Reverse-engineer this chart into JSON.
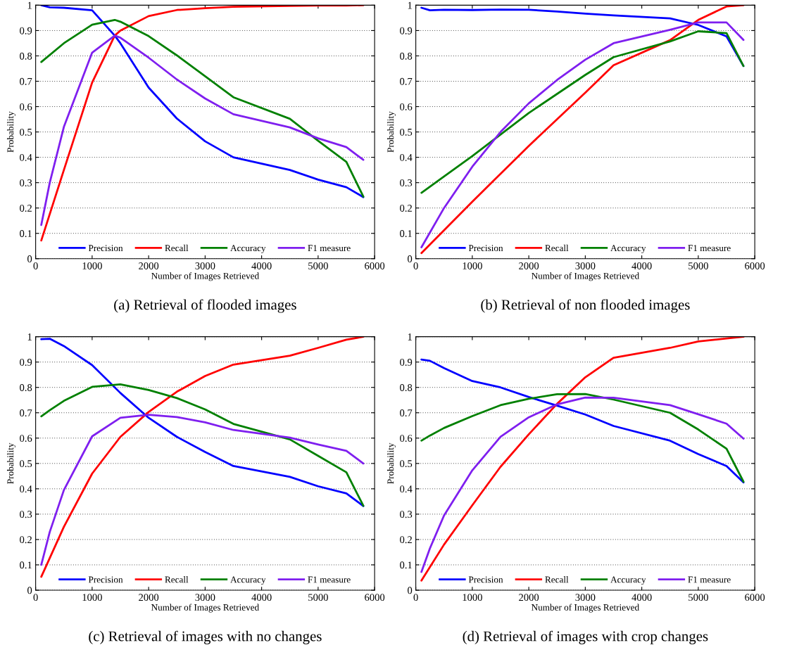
{
  "chart_data": [
    {
      "type": "line",
      "title": "(a) Retrieval of flooded images",
      "xlabel": "Number of Images Retrieved",
      "ylabel": "Probability",
      "xlim": [
        0,
        6000
      ],
      "ylim": [
        0,
        1
      ],
      "xticks": [
        0,
        1000,
        2000,
        3000,
        4000,
        5000,
        6000
      ],
      "yticks": [
        0,
        0.1,
        0.2,
        0.3,
        0.4,
        0.5,
        0.6,
        0.7,
        0.8,
        0.9,
        1
      ],
      "grid": "y",
      "legend": "bottom",
      "line_style": "solid",
      "series": [
        {
          "name": "Precision",
          "color": "#0000ff",
          "x": [
            100,
            250,
            500,
            1000,
            1400,
            1500,
            2000,
            2500,
            3000,
            3500,
            4500,
            5000,
            5500,
            5800
          ],
          "values": [
            1.0,
            0.992,
            0.99,
            0.98,
            0.88,
            0.85,
            0.675,
            0.553,
            0.463,
            0.4,
            0.35,
            0.312,
            0.282,
            0.243
          ]
        },
        {
          "name": "Recall",
          "color": "#ff0000",
          "x": [
            100,
            500,
            1000,
            1400,
            1500,
            2000,
            2500,
            3000,
            3500,
            4500,
            5000,
            5500,
            5800
          ],
          "values": [
            0.072,
            0.35,
            0.695,
            0.88,
            0.9,
            0.957,
            0.981,
            0.988,
            0.994,
            0.997,
            0.999,
            0.999,
            1.0
          ]
        },
        {
          "name": "Accuracy",
          "color": "#008000",
          "x": [
            100,
            500,
            1000,
            1400,
            1500,
            2000,
            2500,
            3000,
            3500,
            4500,
            5000,
            5500,
            5800
          ],
          "values": [
            0.776,
            0.85,
            0.923,
            0.942,
            0.935,
            0.878,
            0.802,
            0.72,
            0.637,
            0.552,
            0.465,
            0.382,
            0.245
          ]
        },
        {
          "name": "F1 measure",
          "color": "#7f1fef",
          "x": [
            100,
            250,
            500,
            1000,
            1400,
            1500,
            2000,
            2500,
            3000,
            3500,
            4500,
            5000,
            5500,
            5800
          ],
          "values": [
            0.133,
            0.3,
            0.52,
            0.813,
            0.88,
            0.872,
            0.793,
            0.707,
            0.632,
            0.57,
            0.518,
            0.475,
            0.44,
            0.39
          ]
        }
      ]
    },
    {
      "type": "line",
      "title": "(b) Retrieval of non flooded images",
      "xlabel": "Number of Images Retrieved",
      "ylabel": "Probability",
      "xlim": [
        0,
        6000
      ],
      "ylim": [
        0,
        1
      ],
      "xticks": [
        0,
        1000,
        2000,
        3000,
        4000,
        5000,
        6000
      ],
      "yticks": [
        0,
        0.1,
        0.2,
        0.3,
        0.4,
        0.5,
        0.6,
        0.7,
        0.8,
        0.9,
        1
      ],
      "grid": "y",
      "legend": "bottom",
      "line_style": "solid",
      "series": [
        {
          "name": "Precision",
          "color": "#0000ff",
          "x": [
            100,
            250,
            500,
            1000,
            1500,
            2000,
            2500,
            3000,
            3500,
            4500,
            5000,
            5500,
            5800
          ],
          "values": [
            0.99,
            0.98,
            0.982,
            0.981,
            0.983,
            0.982,
            0.975,
            0.967,
            0.96,
            0.948,
            0.922,
            0.877,
            0.76
          ]
        },
        {
          "name": "Recall",
          "color": "#ff0000",
          "x": [
            100,
            1000,
            2000,
            3000,
            3500,
            4500,
            5000,
            5500,
            5800
          ],
          "values": [
            0.022,
            0.225,
            0.445,
            0.655,
            0.763,
            0.862,
            0.942,
            0.995,
            1.0
          ]
        },
        {
          "name": "Accuracy",
          "color": "#008000",
          "x": [
            100,
            1000,
            2000,
            3000,
            3500,
            4500,
            5000,
            5500,
            5800
          ],
          "values": [
            0.26,
            0.405,
            0.575,
            0.725,
            0.795,
            0.857,
            0.897,
            0.89,
            0.76
          ]
        },
        {
          "name": "F1 measure",
          "color": "#7f1fef",
          "x": [
            100,
            500,
            1000,
            1500,
            2000,
            2500,
            3000,
            3500,
            4500,
            5000,
            5500,
            5800
          ],
          "values": [
            0.045,
            0.2,
            0.363,
            0.5,
            0.613,
            0.705,
            0.785,
            0.85,
            0.903,
            0.932,
            0.932,
            0.863
          ]
        }
      ]
    },
    {
      "type": "line",
      "title": "(c) Retrieval of images with no changes",
      "xlabel": "Number of Images Retrieved",
      "ylabel": "Probability",
      "xlim": [
        0,
        6000
      ],
      "ylim": [
        0,
        1
      ],
      "xticks": [
        0,
        1000,
        2000,
        3000,
        4000,
        5000,
        6000
      ],
      "yticks": [
        0,
        0.1,
        0.2,
        0.3,
        0.4,
        0.5,
        0.6,
        0.7,
        0.8,
        0.9,
        1
      ],
      "grid": "y",
      "legend": "bottom",
      "line_style": "solid",
      "series": [
        {
          "name": "Precision",
          "color": "#0000ff",
          "x": [
            100,
            250,
            500,
            1000,
            1500,
            2000,
            2500,
            3000,
            3500,
            4500,
            5000,
            5500,
            5800
          ],
          "values": [
            0.99,
            0.992,
            0.963,
            0.888,
            0.778,
            0.68,
            0.605,
            0.545,
            0.49,
            0.447,
            0.41,
            0.382,
            0.332
          ]
        },
        {
          "name": "Recall",
          "color": "#ff0000",
          "x": [
            100,
            500,
            1000,
            1500,
            2000,
            2500,
            3000,
            3500,
            4500,
            5000,
            5500,
            5800
          ],
          "values": [
            0.053,
            0.25,
            0.46,
            0.605,
            0.703,
            0.783,
            0.845,
            0.89,
            0.925,
            0.956,
            0.988,
            1.0
          ]
        },
        {
          "name": "Accuracy",
          "color": "#008000",
          "x": [
            100,
            250,
            500,
            1000,
            1500,
            2000,
            2500,
            3000,
            3500,
            4500,
            5000,
            5500,
            5800
          ],
          "values": [
            0.686,
            0.71,
            0.747,
            0.802,
            0.812,
            0.79,
            0.758,
            0.713,
            0.656,
            0.595,
            0.53,
            0.465,
            0.333
          ]
        },
        {
          "name": "F1 measure",
          "color": "#7f1fef",
          "x": [
            100,
            250,
            500,
            1000,
            1500,
            2000,
            2500,
            3000,
            3500,
            4500,
            5000,
            5500,
            5800
          ],
          "values": [
            0.1,
            0.23,
            0.395,
            0.607,
            0.68,
            0.692,
            0.683,
            0.662,
            0.632,
            0.602,
            0.575,
            0.55,
            0.5
          ]
        }
      ]
    },
    {
      "type": "line",
      "title": "(d) Retrieval of images with crop changes",
      "xlabel": "Number of Images Retrieved",
      "ylabel": "Probability",
      "xlim": [
        0,
        6000
      ],
      "ylim": [
        0,
        1
      ],
      "xticks": [
        0,
        1000,
        2000,
        3000,
        4000,
        5000,
        6000
      ],
      "yticks": [
        0,
        0.1,
        0.2,
        0.3,
        0.4,
        0.5,
        0.6,
        0.7,
        0.8,
        0.9,
        1
      ],
      "grid": "y",
      "legend": "bottom",
      "line_style": "solid",
      "series": [
        {
          "name": "Precision",
          "color": "#0000ff",
          "x": [
            100,
            250,
            500,
            1000,
            1500,
            2000,
            2500,
            3000,
            3500,
            4500,
            5000,
            5500,
            5800
          ],
          "values": [
            0.91,
            0.905,
            0.876,
            0.825,
            0.8,
            0.762,
            0.728,
            0.693,
            0.648,
            0.59,
            0.537,
            0.49,
            0.425
          ]
        },
        {
          "name": "Recall",
          "color": "#ff0000",
          "x": [
            100,
            500,
            1000,
            1500,
            2000,
            2500,
            3000,
            3500,
            4500,
            5000,
            5500,
            5800
          ],
          "values": [
            0.038,
            0.18,
            0.335,
            0.487,
            0.615,
            0.735,
            0.84,
            0.917,
            0.956,
            0.981,
            0.993,
            1.0
          ]
        },
        {
          "name": "Accuracy",
          "color": "#008000",
          "x": [
            100,
            250,
            500,
            1000,
            1500,
            2000,
            2500,
            3000,
            3500,
            4500,
            5000,
            5500,
            5800
          ],
          "values": [
            0.59,
            0.61,
            0.64,
            0.687,
            0.73,
            0.755,
            0.773,
            0.774,
            0.752,
            0.7,
            0.634,
            0.558,
            0.428
          ]
        },
        {
          "name": "F1 measure",
          "color": "#7f1fef",
          "x": [
            100,
            250,
            500,
            1000,
            1500,
            2000,
            2500,
            3000,
            3500,
            4500,
            5000,
            5500,
            5800
          ],
          "values": [
            0.072,
            0.165,
            0.295,
            0.473,
            0.605,
            0.682,
            0.733,
            0.76,
            0.759,
            0.73,
            0.694,
            0.657,
            0.598
          ]
        }
      ]
    }
  ]
}
